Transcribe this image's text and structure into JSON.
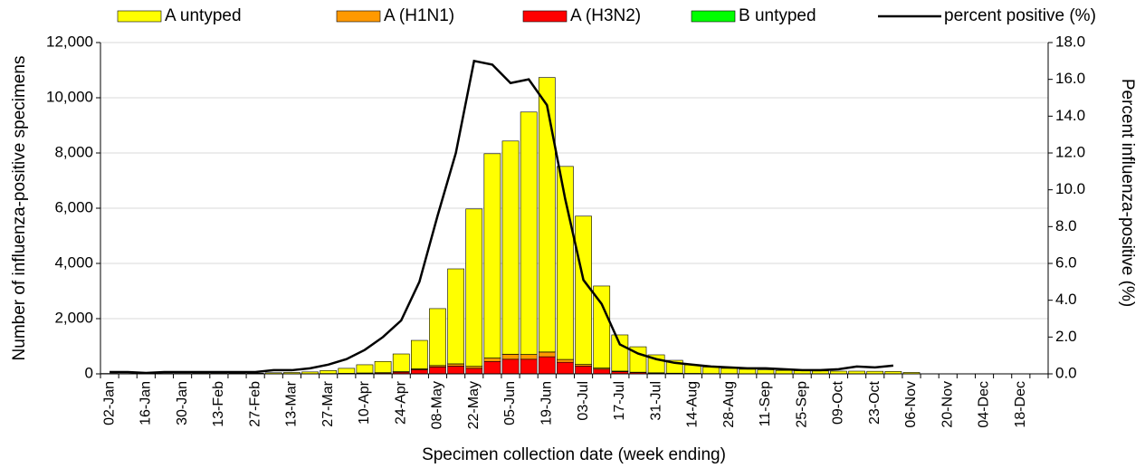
{
  "chart_data": {
    "type": "bar",
    "categories": [
      "02-Jan",
      null,
      "16-Jan",
      null,
      "30-Jan",
      null,
      "13-Feb",
      null,
      "27-Feb",
      null,
      "13-Mar",
      null,
      "27-Mar",
      null,
      "10-Apr",
      null,
      "24-Apr",
      null,
      "08-May",
      null,
      "22-May",
      null,
      "05-Jun",
      null,
      "19-Jun",
      null,
      "03-Jul",
      null,
      "17-Jul",
      null,
      "31-Jul",
      null,
      "14-Aug",
      null,
      "28-Aug",
      null,
      "11-Sep",
      null,
      "25-Sep",
      null,
      "09-Oct",
      null,
      "23-Oct",
      null,
      "06-Nov",
      null,
      "20-Nov",
      null,
      "04-Dec",
      null,
      "18-Dec",
      null
    ],
    "series": [
      {
        "name": "A untyped",
        "color": "#ffff00",
        "values": [
          15,
          10,
          10,
          15,
          15,
          20,
          20,
          25,
          25,
          40,
          48,
          65,
          108,
          180,
          297,
          405,
          640,
          1030,
          2060,
          3440,
          5700,
          7400,
          7720,
          8780,
          9940,
          6990,
          5370,
          2970,
          1310,
          920,
          650,
          465,
          310,
          235,
          188,
          160,
          140,
          120,
          110,
          100,
          95,
          95,
          90,
          85,
          50,
          null,
          null,
          null,
          null,
          null,
          null,
          null
        ]
      },
      {
        "name": "A (H1N1)",
        "color": "#ff9900",
        "values": [
          0,
          0,
          0,
          0,
          0,
          0,
          0,
          0,
          0,
          0,
          0,
          0,
          2,
          5,
          8,
          10,
          20,
          30,
          50,
          80,
          70,
          120,
          180,
          170,
          170,
          100,
          60,
          40,
          20,
          10,
          8,
          5,
          3,
          2,
          2,
          1,
          1,
          1,
          1,
          1,
          1,
          1,
          1,
          1,
          1,
          null,
          null,
          null,
          null,
          null,
          null,
          null
        ]
      },
      {
        "name": "A (H3N2)",
        "color": "#ff0000",
        "values": [
          0,
          0,
          0,
          0,
          0,
          0,
          0,
          0,
          0,
          0,
          2,
          5,
          10,
          15,
          25,
          35,
          60,
          150,
          250,
          280,
          200,
          450,
          530,
          530,
          620,
          420,
          280,
          170,
          80,
          50,
          30,
          20,
          15,
          10,
          8,
          5,
          5,
          4,
          3,
          3,
          2,
          2,
          2,
          1,
          1,
          null,
          null,
          null,
          null,
          null,
          null,
          null
        ]
      },
      {
        "name": "B untyped",
        "color": "#00ff00",
        "values": [
          0,
          0,
          0,
          0,
          0,
          0,
          0,
          0,
          0,
          0,
          0,
          0,
          0,
          0,
          0,
          0,
          1,
          2,
          3,
          3,
          3,
          3,
          3,
          3,
          3,
          3,
          2,
          2,
          1,
          1,
          1,
          1,
          0,
          0,
          0,
          0,
          0,
          0,
          0,
          0,
          0,
          0,
          0,
          0,
          0,
          null,
          null,
          null,
          null,
          null,
          null,
          null
        ]
      },
      {
        "name": "percent positive (%)",
        "color": "#000000",
        "type": "line",
        "axis": "y2",
        "values": [
          0.1,
          0.1,
          0.05,
          0.1,
          0.1,
          0.1,
          0.1,
          0.1,
          0.1,
          0.2,
          0.2,
          0.3,
          0.5,
          0.8,
          1.3,
          2.0,
          2.9,
          5.0,
          8.6,
          12.0,
          17.0,
          16.8,
          15.8,
          16.0,
          14.6,
          9.5,
          5.1,
          3.8,
          1.6,
          1.1,
          0.8,
          0.6,
          0.5,
          0.4,
          0.35,
          0.3,
          0.3,
          0.25,
          0.2,
          0.2,
          0.25,
          0.4,
          0.35,
          0.45,
          null,
          null,
          null,
          null,
          null,
          null,
          null,
          null
        ]
      }
    ],
    "ylim": [
      0,
      12000
    ],
    "yticks": [
      0,
      {
        "value": 2000,
        "label": "2,000"
      },
      {
        "value": 4000,
        "label": "4,000"
      },
      {
        "value": 6000,
        "label": "6,000"
      },
      {
        "value": 8000,
        "label": "8,000"
      },
      {
        "value": 10000,
        "label": "10,000"
      },
      {
        "value": 12000,
        "label": "12,000"
      }
    ],
    "y2lim": [
      0,
      18
    ],
    "y2ticks": [
      {
        "value": 0,
        "label": "0.0"
      },
      {
        "value": 2,
        "label": "2.0"
      },
      {
        "value": 4,
        "label": "4.0"
      },
      {
        "value": 6,
        "label": "6.0"
      },
      {
        "value": 8,
        "label": "8.0"
      },
      {
        "value": 10,
        "label": "10.0"
      },
      {
        "value": 12,
        "label": "12.0"
      },
      {
        "value": 14,
        "label": "14.0"
      },
      {
        "value": 16,
        "label": "16.0"
      },
      {
        "value": 18,
        "label": "18.0"
      }
    ],
    "ylabel": "Number of influenza-positive specimens",
    "y2label": "Percent influenza-positive (%)",
    "xlabel": "Specimen collection date (week ending)",
    "grid": true,
    "legend": "top"
  }
}
